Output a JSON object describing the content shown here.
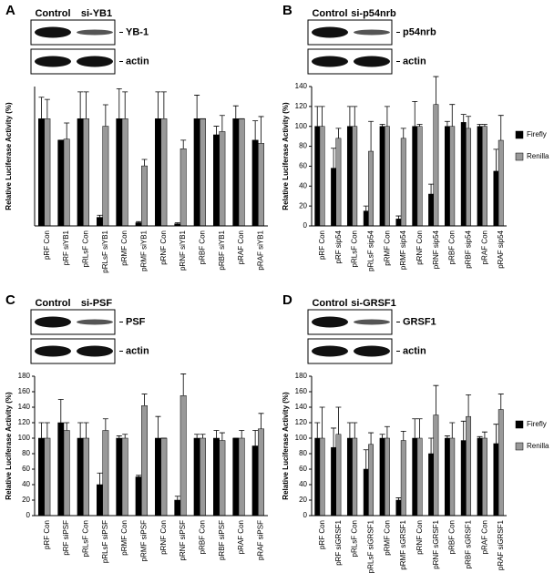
{
  "chart_data": [
    {
      "type": "bar",
      "panel": "A",
      "blot": {
        "lanes": [
          "Control",
          "si-YB1"
        ],
        "bands": [
          "YB-1",
          "actin"
        ]
      },
      "y_label": "Relative Luciferase Activity (%)",
      "categories": [
        "pRF Con",
        "pRF siYB1",
        "pRLsF Con",
        "pRLsF siYB1",
        "pRMF Con",
        "pRMF siYB1",
        "pRNF Con",
        "pRNF siYB1",
        "pRBF Con",
        "pRBF siYB1",
        "pRAF Con",
        "pRAF siYB1"
      ],
      "series": [
        {
          "color": "#000000",
          "values": [
            100,
            80,
            100,
            8,
            100,
            3,
            100,
            2,
            100,
            85,
            100,
            80
          ],
          "errors": [
            20,
            0,
            25,
            2,
            28,
            1,
            25,
            1,
            22,
            8,
            12,
            18
          ]
        },
        {
          "color": "#999999",
          "values": [
            100,
            81,
            100,
            93,
            100,
            56,
            100,
            72,
            100,
            88,
            100,
            77
          ],
          "errors": [
            18,
            15,
            25,
            20,
            25,
            6,
            25,
            8,
            0,
            15,
            0,
            25
          ]
        }
      ],
      "ylim": [
        0,
        130
      ]
    },
    {
      "type": "bar",
      "panel": "B",
      "blot": {
        "lanes": [
          "Control",
          "si-p54nrb"
        ],
        "bands": [
          "p54nrb",
          "actin"
        ]
      },
      "y_label": "Relative Luciferase Activity (%)",
      "categories": [
        "pRF Con",
        "pRF sip54",
        "pRLsF Con",
        "pRLsF sip54",
        "pRMF Con",
        "pRMF sip54",
        "pRNF Con",
        "pRNF sip54",
        "pRBF Con",
        "pRBF sip54",
        "pRAF Con",
        "pRAF sip54"
      ],
      "series": [
        {
          "name": "Firefly",
          "color": "#000000",
          "values": [
            100,
            58,
            100,
            15,
            100,
            7,
            100,
            32,
            100,
            104,
            100,
            55
          ],
          "errors": [
            20,
            20,
            20,
            5,
            2,
            3,
            25,
            10,
            5,
            8,
            2,
            22
          ]
        },
        {
          "name": "Renilla",
          "color": "#999999",
          "values": [
            100,
            88,
            100,
            75,
            100,
            88,
            100,
            122,
            100,
            98,
            100,
            86
          ],
          "errors": [
            20,
            10,
            20,
            30,
            20,
            10,
            2,
            28,
            22,
            12,
            2,
            25
          ]
        }
      ],
      "ylim": [
        0,
        140
      ],
      "yticks": [
        0,
        20,
        40,
        60,
        80,
        100,
        120,
        140
      ],
      "legend": "right"
    },
    {
      "type": "bar",
      "panel": "C",
      "blot": {
        "lanes": [
          "Control",
          "si-PSF"
        ],
        "bands": [
          "PSF",
          "actin"
        ]
      },
      "y_label": "Relative Luciferase Activity (%)",
      "categories": [
        "pRF Con",
        "pRF siPSF",
        "pRLsF Con",
        "pRLsF siPSF",
        "pRMF Con",
        "pRMF siPSF",
        "pRNF Con",
        "pRNF siPSF",
        "pRBF Con",
        "pRBF siPSF",
        "pRAF Con",
        "pRAF siPSF"
      ],
      "series": [
        {
          "color": "#000000",
          "values": [
            100,
            120,
            100,
            40,
            100,
            50,
            100,
            20,
            100,
            100,
            100,
            90
          ],
          "errors": [
            20,
            30,
            20,
            15,
            3,
            2,
            28,
            5,
            5,
            10,
            0,
            20
          ]
        },
        {
          "color": "#999999",
          "values": [
            100,
            110,
            100,
            110,
            100,
            142,
            100,
            155,
            100,
            97,
            100,
            112
          ],
          "errors": [
            20,
            10,
            20,
            15,
            5,
            15,
            0,
            28,
            5,
            10,
            10,
            20
          ]
        }
      ],
      "ylim": [
        0,
        180
      ],
      "yticks": [
        0,
        20,
        40,
        60,
        80,
        100,
        120,
        140,
        160,
        180
      ]
    },
    {
      "type": "bar",
      "panel": "D",
      "blot": {
        "lanes": [
          "Control",
          "si-GRSF1"
        ],
        "bands": [
          "GRSF1",
          "actin"
        ]
      },
      "y_label": "Relative Luciferase Activity (%)",
      "categories": [
        "pRF Con",
        "pRF siGRSF1",
        "pRLsF Con",
        "pRLsF siGRSF1",
        "pRMF Con",
        "pRMF sGRSF1",
        "pRNF Con",
        "pRNF sGRSF1",
        "pRBF Con",
        "pRBF sGRSF1",
        "pRAF Con",
        "pRAF siGRSF1"
      ],
      "series": [
        {
          "name": "Firefly",
          "color": "#000000",
          "values": [
            100,
            88,
            100,
            60,
            100,
            20,
            100,
            80,
            100,
            97,
            100,
            93
          ],
          "errors": [
            20,
            25,
            20,
            25,
            5,
            3,
            25,
            20,
            3,
            25,
            2,
            25
          ]
        },
        {
          "name": "Renilla",
          "color": "#999999",
          "values": [
            100,
            105,
            100,
            92,
            100,
            97,
            100,
            130,
            100,
            128,
            100,
            137
          ],
          "errors": [
            40,
            35,
            20,
            15,
            15,
            12,
            25,
            38,
            20,
            28,
            8,
            20
          ]
        }
      ],
      "ylim": [
        0,
        180
      ],
      "yticks": [
        0,
        20,
        40,
        60,
        80,
        100,
        120,
        140,
        160,
        180
      ],
      "legend": "right"
    }
  ]
}
